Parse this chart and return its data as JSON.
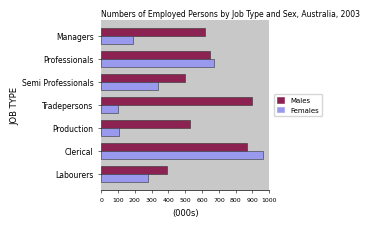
{
  "title": "Numbers of Employed Persons by Job Type and Sex, Australia, 2003",
  "categories": [
    "Managers",
    "Professionals",
    "Semi Professionals",
    "Tradepersons",
    "Production",
    "Clerical",
    "Labourers"
  ],
  "males": [
    620,
    650,
    500,
    900,
    530,
    870,
    390
  ],
  "females": [
    190,
    670,
    340,
    100,
    105,
    960,
    280
  ],
  "male_color": "#8B2252",
  "female_color": "#9999EE",
  "plot_bg_color": "#C8C8C8",
  "fig_bg_color": "#FFFFFF",
  "xlabel": "(000s)",
  "ylabel": "JOB TYPE",
  "xlim": [
    0,
    1000
  ],
  "xticks": [
    0,
    100,
    200,
    300,
    400,
    500,
    600,
    700,
    800,
    900,
    1000
  ],
  "legend_males": "Males",
  "legend_females": "Females"
}
